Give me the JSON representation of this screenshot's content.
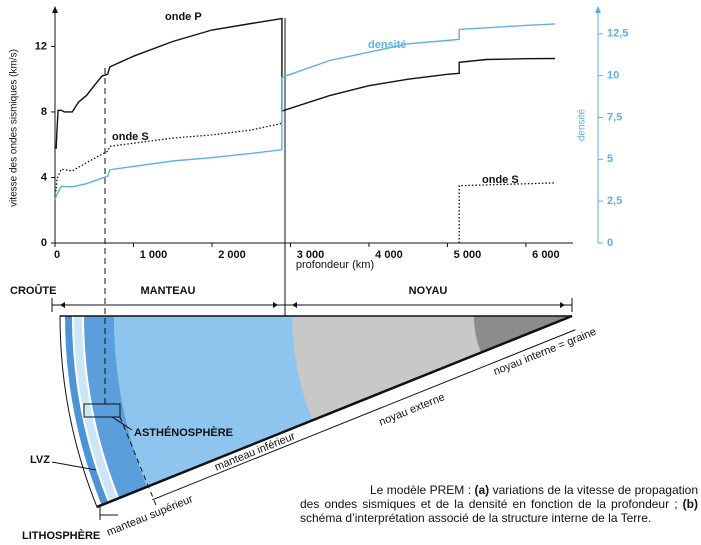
{
  "chart_data": {
    "type": "line",
    "x_label": "profondeur (km)",
    "y_label": "vitesse des ondes sismiques (km/s)",
    "y2_label": "densité",
    "xlim": [
      0,
      6600
    ],
    "xticks": [
      0,
      {
        "value": 1000,
        "label": "1 000"
      },
      {
        "value": 2000,
        "label": "2 000"
      },
      {
        "value": 3000,
        "label": "3 000"
      },
      {
        "value": 4000,
        "label": "4 000"
      },
      {
        "value": 5000,
        "label": "5 000"
      },
      {
        "value": 6000,
        "label": "6 000"
      }
    ],
    "ylim": [
      0,
      14.1
    ],
    "yticks": [
      0,
      4,
      8,
      12
    ],
    "y2lim": [
      0,
      13.8
    ],
    "y2ticks": [
      0,
      {
        "value": 2.5,
        "label": "2,5"
      },
      5,
      {
        "value": 7.5,
        "label": "7,5"
      },
      10,
      {
        "value": 12.5,
        "label": "12,5"
      }
    ],
    "y2color": "#5fb0e4",
    "series": [
      {
        "name": "onde P",
        "color": "#111111",
        "style": "solid",
        "x": [
          0,
          15,
          24,
          40,
          80,
          120,
          220,
          300,
          400,
          500,
          600,
          670,
          700,
          1000,
          1500,
          2000,
          2500,
          2891,
          2891,
          3500,
          4000,
          4500,
          5000,
          5150,
          5150,
          5500,
          6000,
          6371
        ],
        "values": [
          5.8,
          5.8,
          6.8,
          8.1,
          8.1,
          8.0,
          8.0,
          8.6,
          9.0,
          9.6,
          10.2,
          10.3,
          10.75,
          11.4,
          12.3,
          13.0,
          13.4,
          13.7,
          8.06,
          9.0,
          9.6,
          10.0,
          10.3,
          10.36,
          11.03,
          11.2,
          11.25,
          11.26
        ]
      },
      {
        "name": "onde S",
        "color": "#111111",
        "style": "dotted",
        "x": [
          0,
          15,
          24,
          80,
          220,
          400,
          670,
          700,
          1500,
          2000,
          2500,
          2891,
          3000,
          5150,
          5150,
          6371
        ],
        "values": [
          3.2,
          3.2,
          3.9,
          4.5,
          4.4,
          4.9,
          5.6,
          5.9,
          6.4,
          6.6,
          6.9,
          7.3,
          null,
          0,
          3.5,
          3.67
        ]
      },
      {
        "name": "densité",
        "color": "#5fb0e4",
        "style": "solid",
        "axis": "y2",
        "x": [
          0,
          24,
          80,
          220,
          400,
          670,
          700,
          1500,
          2000,
          2500,
          2891,
          2891,
          3500,
          4000,
          4500,
          5000,
          5150,
          5150,
          6000,
          6371
        ],
        "values": [
          2.6,
          2.9,
          3.38,
          3.36,
          3.54,
          3.99,
          4.38,
          4.9,
          5.1,
          5.35,
          5.57,
          9.9,
          10.9,
          11.4,
          11.9,
          12.1,
          12.17,
          12.76,
          13.0,
          13.09
        ]
      }
    ]
  },
  "diagram": {
    "sections": [
      "CROÛTE",
      "MANTEAU",
      "NOYAU"
    ],
    "asthenosphere": "ASTHÉNOSPHÈRE",
    "lvz": "LVZ",
    "lithosphere": "LITHOSPHÈRE",
    "upper_mantle": "manteau supérieur",
    "lower_mantle": "manteau inférieur",
    "outer_core": "noyau externe",
    "inner_core": "noyau interne = graine"
  },
  "caption": [
    "Le modèle PREM : ",
    "(a)",
    " variations de la vitesse de propagation des ondes sismiques et de la densité en fonction de la profondeur ; ",
    "(b)",
    " schéma d’interprétation associé de la structure interne de la Terre."
  ]
}
